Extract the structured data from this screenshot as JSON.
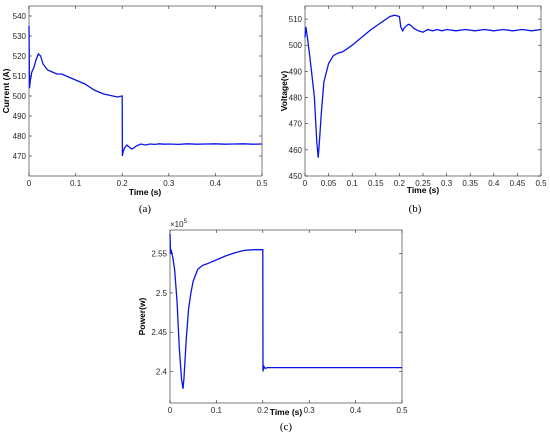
{
  "chart_data": [
    {
      "type": "line",
      "caption": "(a)",
      "xlabel": "Time (s)",
      "ylabel": "Current (A)",
      "xlim": [
        0,
        0.5
      ],
      "ylim": [
        460,
        545
      ],
      "xticks": [
        0,
        0.1,
        0.2,
        0.3,
        0.4,
        0.5
      ],
      "xtick_labels": [
        "0",
        "0.1",
        "0.2",
        "0.3",
        "0.4",
        "0.5"
      ],
      "yticks": [
        470,
        480,
        490,
        500,
        510,
        520,
        530,
        540
      ],
      "ytick_labels": [
        "470",
        "480",
        "490",
        "500",
        "510",
        "520",
        "530",
        "540"
      ],
      "color": "#0a14e6",
      "series": [
        {
          "x": [
            0,
            0.001,
            0.003,
            0.006,
            0.01,
            0.015,
            0.02,
            0.025,
            0.03,
            0.04,
            0.05,
            0.06,
            0.07,
            0.08,
            0.09,
            0.1,
            0.12,
            0.14,
            0.16,
            0.18,
            0.19,
            0.199,
            0.2,
            0.2005,
            0.202,
            0.205,
            0.21,
            0.215,
            0.22,
            0.225,
            0.23,
            0.24,
            0.25,
            0.26,
            0.27,
            0.28,
            0.29,
            0.3,
            0.32,
            0.34,
            0.36,
            0.38,
            0.4,
            0.42,
            0.44,
            0.46,
            0.48,
            0.5
          ],
          "y": [
            535,
            504,
            508,
            512,
            514,
            518,
            521,
            520,
            516,
            513,
            512,
            511,
            511,
            510,
            509,
            508,
            506,
            503,
            501,
            500,
            499.5,
            500,
            500,
            470,
            472,
            474,
            475.5,
            474.5,
            473.5,
            474,
            475,
            476,
            475.5,
            476,
            475.8,
            476.1,
            475.9,
            476,
            475.8,
            476.1,
            475.9,
            476,
            476.1,
            475.9,
            476,
            476.1,
            475.9,
            476
          ]
        }
      ]
    },
    {
      "type": "line",
      "caption": "(b)",
      "xlabel": "Time (s)",
      "ylabel": "Voltage(v)",
      "xlim": [
        0,
        0.5
      ],
      "ylim": [
        450,
        515
      ],
      "xticks": [
        0,
        0.05,
        0.1,
        0.15,
        0.2,
        0.25,
        0.3,
        0.35,
        0.4,
        0.45,
        0.5
      ],
      "xtick_labels": [
        "0",
        "0.05",
        "0.1",
        "0.15",
        "0.2",
        "0.25",
        "0.3",
        "0.35",
        "0.4",
        "0.45",
        "0.5"
      ],
      "yticks": [
        450,
        460,
        470,
        480,
        490,
        500,
        510
      ],
      "ytick_labels": [
        "450",
        "460",
        "470",
        "480",
        "490",
        "500",
        "510"
      ],
      "color": "#0a14e6",
      "series": [
        {
          "x": [
            0,
            0.002,
            0.005,
            0.01,
            0.015,
            0.02,
            0.025,
            0.028,
            0.03,
            0.035,
            0.04,
            0.05,
            0.06,
            0.07,
            0.08,
            0.1,
            0.12,
            0.14,
            0.16,
            0.18,
            0.19,
            0.2,
            0.203,
            0.207,
            0.21,
            0.215,
            0.22,
            0.225,
            0.23,
            0.24,
            0.25,
            0.26,
            0.27,
            0.28,
            0.29,
            0.3,
            0.32,
            0.34,
            0.36,
            0.38,
            0.4,
            0.42,
            0.44,
            0.46,
            0.48,
            0.5
          ],
          "y": [
            503,
            507,
            503,
            496,
            488,
            480,
            463,
            457,
            462,
            475,
            486,
            493,
            496,
            497,
            497.5,
            500,
            503,
            506,
            508.5,
            511,
            511.5,
            511,
            507,
            505.5,
            506.5,
            507.5,
            508,
            507.5,
            506.5,
            505.5,
            505,
            506,
            505.5,
            506,
            505.5,
            506,
            505.5,
            506,
            505.5,
            506,
            505.5,
            506,
            505.5,
            506,
            505.5,
            506
          ]
        }
      ]
    },
    {
      "type": "line",
      "caption": "(c)",
      "xlabel": "Time (s)",
      "ylabel": "Power(w)",
      "exponent": "×10",
      "exponent_power": "5",
      "xlim": [
        0,
        0.5
      ],
      "ylim": [
        2.36,
        2.58
      ],
      "xticks": [
        0,
        0.1,
        0.2,
        0.3,
        0.4,
        0.5
      ],
      "xtick_labels": [
        "0",
        "0.1",
        "0.2",
        "0.3",
        "0.4",
        "0.5"
      ],
      "yticks": [
        2.4,
        2.45,
        2.5,
        2.55
      ],
      "ytick_labels": [
        "2.4",
        "2.45",
        "2.5",
        "2.55"
      ],
      "color": "#0a14e6",
      "series": [
        {
          "x": [
            0,
            0.001,
            0.003,
            0.006,
            0.01,
            0.015,
            0.02,
            0.025,
            0.028,
            0.03,
            0.035,
            0.04,
            0.045,
            0.05,
            0.06,
            0.07,
            0.08,
            0.1,
            0.12,
            0.14,
            0.16,
            0.18,
            0.19,
            0.2,
            0.2005,
            0.202,
            0.205,
            0.21,
            0.22,
            0.25,
            0.3,
            0.35,
            0.4,
            0.45,
            0.5
          ],
          "y": [
            2.575,
            2.55,
            2.553,
            2.545,
            2.53,
            2.49,
            2.43,
            2.39,
            2.378,
            2.39,
            2.44,
            2.48,
            2.5,
            2.515,
            2.53,
            2.535,
            2.537,
            2.542,
            2.547,
            2.551,
            2.554,
            2.555,
            2.555,
            2.555,
            2.4,
            2.407,
            2.404,
            2.405,
            2.405,
            2.405,
            2.405,
            2.405,
            2.405,
            2.405,
            2.405
          ]
        }
      ]
    }
  ]
}
